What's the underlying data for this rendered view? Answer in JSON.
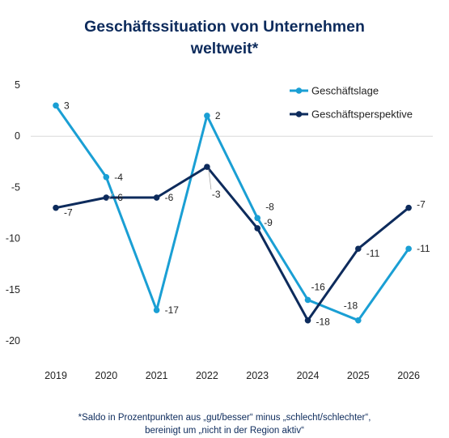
{
  "title_line1": "Geschäftssituation von Unternehmen",
  "title_line2": "weltweit*",
  "footnote_line1": "*Saldo in Prozentpunkten aus „gut/besser“ minus „schlecht/schlechter“,",
  "footnote_line2": "bereinigt um „nicht in der Region aktiv“",
  "colors": {
    "series1": "#1a9fd4",
    "series2": "#0d2b5c",
    "title": "#0d2b5c"
  },
  "chart_data": {
    "type": "line",
    "x": [
      "2019",
      "2020",
      "2021",
      "2022",
      "2023",
      "2024",
      "2025",
      "2026"
    ],
    "ylim": [
      -20,
      5
    ],
    "yticks": [
      5,
      0,
      -5,
      -10,
      -15,
      -20
    ],
    "grid": false,
    "legend_position": "top-right",
    "series": [
      {
        "name": "Geschäftslage",
        "color": "#1a9fd4",
        "values": [
          3,
          -4,
          -17,
          2,
          -8,
          -16,
          -18,
          -11
        ]
      },
      {
        "name": "Geschäftsperspektive",
        "color": "#0d2b5c",
        "values": [
          -7,
          -6,
          -6,
          -3,
          -9,
          -18,
          -11,
          -7
        ]
      }
    ]
  }
}
